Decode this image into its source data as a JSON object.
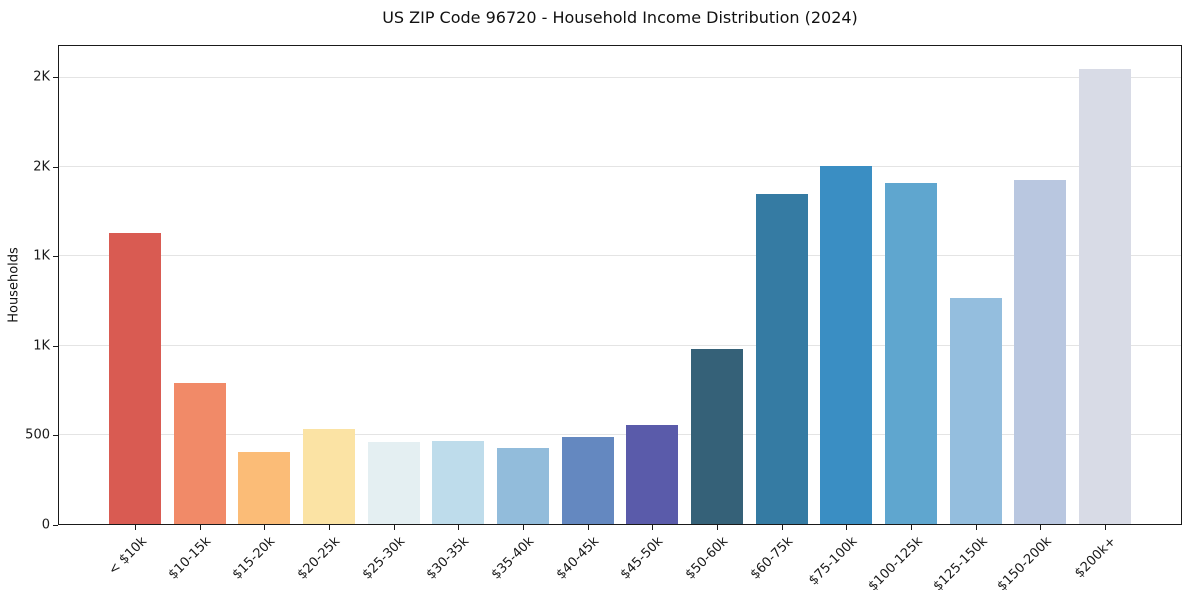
{
  "title": "US ZIP Code 96720 - Household Income Distribution (2024)",
  "chart_data": {
    "type": "bar",
    "title": "US ZIP Code 96720 - Household Income Distribution (2024)",
    "xlabel": "",
    "ylabel": "Households",
    "categories": [
      "< $10k",
      "$10-15k",
      "$15-20k",
      "$20-25k",
      "$25-30k",
      "$30-35k",
      "$35-40k",
      "$40-45k",
      "$45-50k",
      "$50-60k",
      "$60-75k",
      "$75-100k",
      "$100-125k",
      "$125-150k",
      "$150-200k",
      "$200k+"
    ],
    "values": [
      1630,
      790,
      405,
      530,
      460,
      465,
      425,
      490,
      555,
      980,
      1850,
      2005,
      1910,
      1265,
      1930,
      2550
    ],
    "bar_colors": [
      "#d95b52",
      "#f18a68",
      "#fbbc77",
      "#fbe3a4",
      "#e4eff2",
      "#bedceb",
      "#92bcdb",
      "#6488c0",
      "#5a5baa",
      "#356178",
      "#357ba3",
      "#3a8ec3",
      "#5fa6cf",
      "#94bede",
      "#b9c7e0",
      "#d8dbe6"
    ],
    "ylim": [
      0,
      2680
    ],
    "yticks": [
      {
        "value": 0,
        "label": "0"
      },
      {
        "value": 500,
        "label": "500"
      },
      {
        "value": 1000,
        "label": "1K"
      },
      {
        "value": 1500,
        "label": "1K"
      },
      {
        "value": 2000,
        "label": "2K"
      },
      {
        "value": 2500,
        "label": "2K"
      }
    ],
    "grid": "horizontal",
    "legend": "none",
    "colors": {
      "grid": "#e4e4e4",
      "axis": "#1a1a1a",
      "text": "#111111",
      "background": "#ffffff"
    }
  }
}
